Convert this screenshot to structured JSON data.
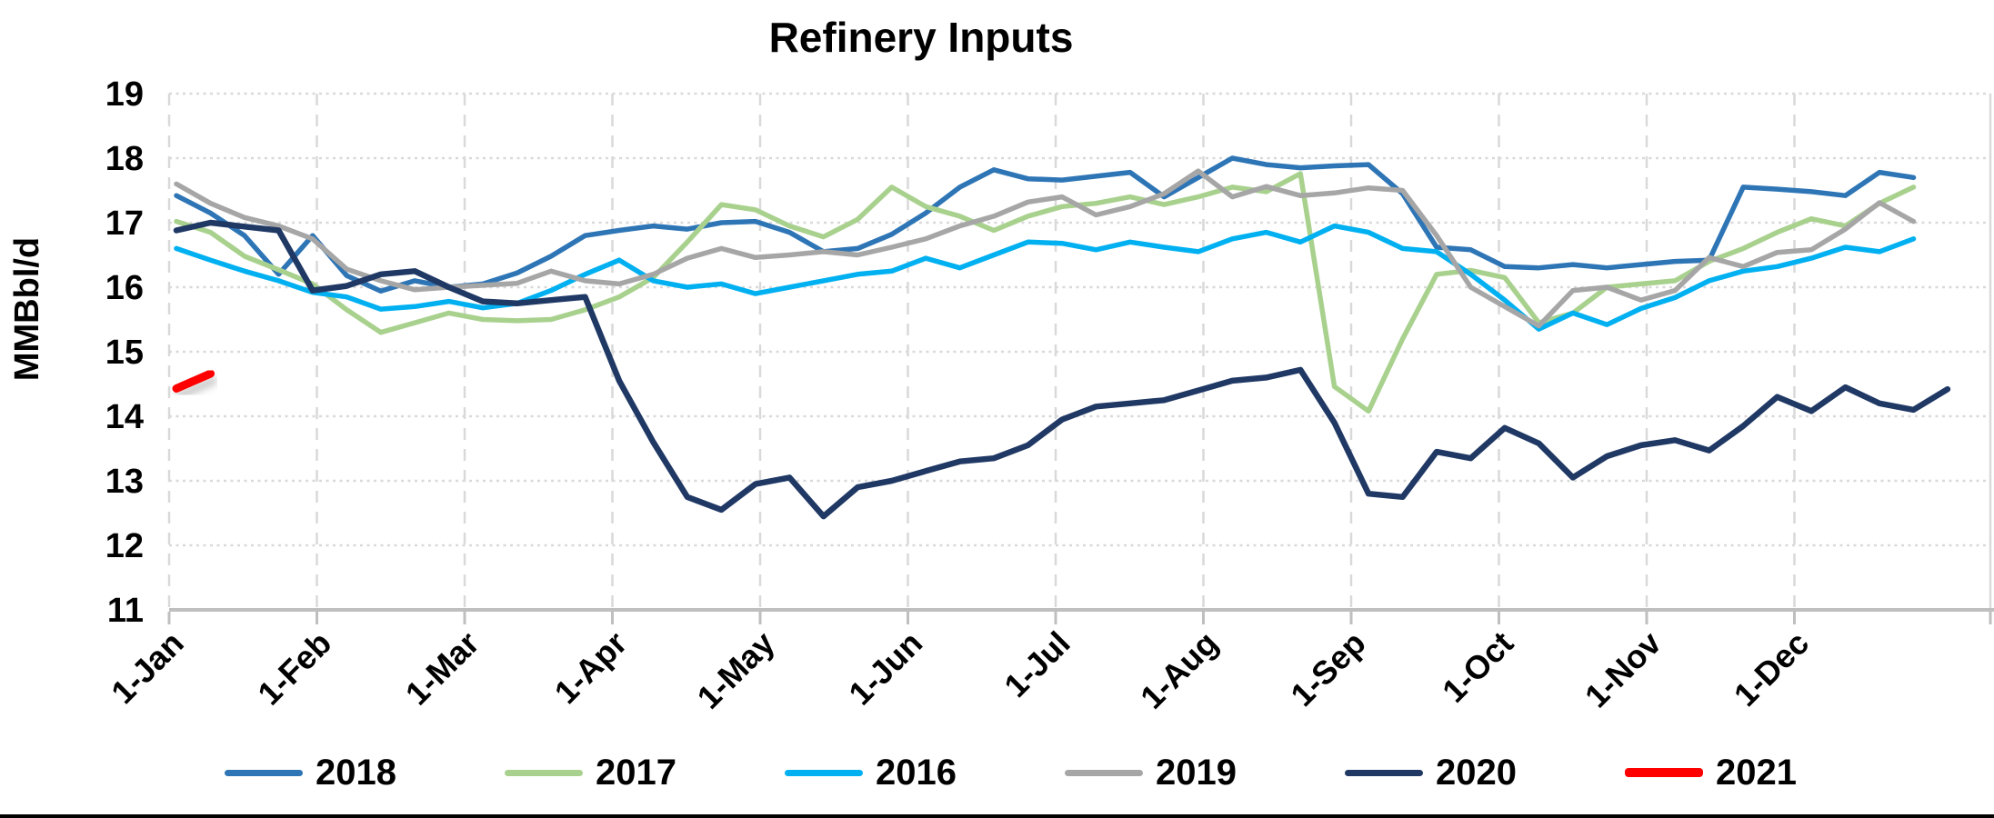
{
  "chart_data": {
    "type": "line",
    "title": "Refinery Inputs",
    "ylabel": "MMBbl/d",
    "ylim": [
      11,
      19
    ],
    "y_ticks": [
      19,
      18,
      17,
      16,
      15,
      14,
      13,
      12,
      11
    ],
    "x_tick_labels": [
      "1-Jan",
      "1-Feb",
      "1-Mar",
      "1-Apr",
      "1-May",
      "1-Jun",
      "1-Jul",
      "1-Aug",
      "1-Sep",
      "1-Oct",
      "1-Nov",
      "1-Dec"
    ],
    "x_unit": "weekly",
    "grid": "on",
    "legend_position": "bottom",
    "series": [
      {
        "name": "2018",
        "color": "#2E75B6",
        "width": 5.5,
        "values": [
          17.42,
          17.15,
          16.8,
          16.2,
          16.8,
          16.18,
          15.94,
          16.1,
          16.0,
          16.05,
          16.22,
          16.48,
          16.8,
          16.88,
          16.95,
          16.9,
          17.0,
          17.02,
          16.85,
          16.55,
          16.6,
          16.82,
          17.15,
          17.55,
          17.82,
          17.68,
          17.66,
          17.72,
          17.78,
          17.4,
          17.7,
          18.0,
          17.9,
          17.85,
          17.88,
          17.9,
          17.45,
          16.62,
          16.58,
          16.32,
          16.3,
          16.35,
          16.3,
          16.35,
          16.4,
          16.42,
          17.55,
          17.52,
          17.48,
          17.42,
          17.78,
          17.7
        ]
      },
      {
        "name": "2017",
        "color": "#A9D18E",
        "width": 5.5,
        "values": [
          17.02,
          16.85,
          16.48,
          16.27,
          16.05,
          15.65,
          15.3,
          15.45,
          15.6,
          15.5,
          15.48,
          15.5,
          15.65,
          15.85,
          16.15,
          16.7,
          17.28,
          17.2,
          16.95,
          16.78,
          17.05,
          17.55,
          17.25,
          17.1,
          16.88,
          17.1,
          17.25,
          17.3,
          17.4,
          17.28,
          17.4,
          17.55,
          17.48,
          17.76,
          14.46,
          14.08,
          15.2,
          16.2,
          16.26,
          16.15,
          15.45,
          15.6,
          16.0,
          16.05,
          16.1,
          16.4,
          16.6,
          16.85,
          17.06,
          16.95,
          17.3,
          17.55
        ]
      },
      {
        "name": "2016",
        "color": "#00B0F0",
        "width": 5.5,
        "values": [
          16.6,
          16.42,
          16.25,
          16.1,
          15.92,
          15.85,
          15.66,
          15.7,
          15.78,
          15.68,
          15.75,
          15.95,
          16.2,
          16.42,
          16.1,
          16.0,
          16.05,
          15.9,
          16.0,
          16.1,
          16.2,
          16.25,
          16.45,
          16.3,
          16.5,
          16.7,
          16.68,
          16.58,
          16.7,
          16.62,
          16.55,
          16.75,
          16.85,
          16.7,
          16.95,
          16.85,
          16.6,
          16.55,
          16.2,
          15.8,
          15.35,
          15.6,
          15.42,
          15.67,
          15.84,
          16.1,
          16.25,
          16.32,
          16.45,
          16.62,
          16.55,
          16.75
        ]
      },
      {
        "name": "2019",
        "color": "#A6A6A6",
        "width": 5.5,
        "values": [
          17.6,
          17.3,
          17.08,
          16.95,
          16.75,
          16.28,
          16.1,
          15.96,
          16.0,
          16.03,
          16.06,
          16.25,
          16.1,
          16.05,
          16.2,
          16.45,
          16.6,
          16.46,
          16.5,
          16.55,
          16.5,
          16.62,
          16.75,
          16.95,
          17.1,
          17.32,
          17.4,
          17.12,
          17.25,
          17.45,
          17.8,
          17.4,
          17.56,
          17.42,
          17.46,
          17.54,
          17.5,
          16.8,
          16.0,
          15.7,
          15.4,
          15.95,
          16.0,
          15.8,
          15.95,
          16.46,
          16.32,
          16.54,
          16.58,
          16.9,
          17.31,
          17.02
        ]
      },
      {
        "name": "2020",
        "color": "#1F3864",
        "width": 6.5,
        "values": [
          16.88,
          17.0,
          16.94,
          16.88,
          15.95,
          16.02,
          16.2,
          16.25,
          16.0,
          15.78,
          15.75,
          15.8,
          15.85,
          14.55,
          13.6,
          12.75,
          12.55,
          12.95,
          13.05,
          12.45,
          12.9,
          13.0,
          13.15,
          13.3,
          13.35,
          13.55,
          13.95,
          14.15,
          14.2,
          14.25,
          14.4,
          14.55,
          14.6,
          14.72,
          13.9,
          12.8,
          12.75,
          13.45,
          13.35,
          13.82,
          13.58,
          13.05,
          13.38,
          13.55,
          13.63,
          13.47,
          13.85,
          14.3,
          14.08,
          14.45,
          14.2,
          14.1,
          14.42
        ]
      },
      {
        "name": "2021",
        "color": "#FF0000",
        "width": 9,
        "values": [
          14.43,
          14.66
        ]
      }
    ]
  }
}
